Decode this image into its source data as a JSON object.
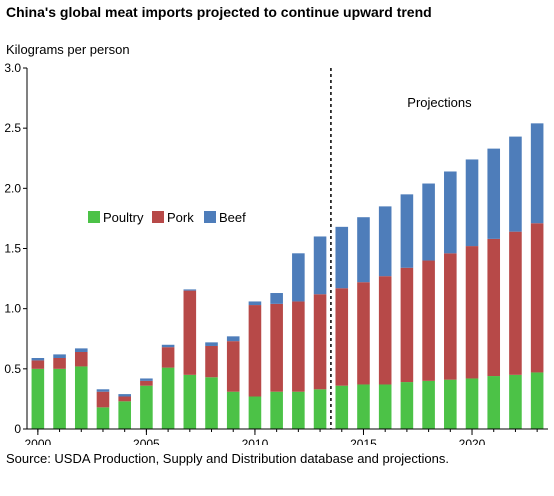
{
  "chart_data": {
    "type": "bar",
    "stacked": true,
    "title": "China's global meat imports projected to continue upward trend",
    "ylabel": "Kilograms per person",
    "xlabel": "",
    "ylim": [
      0,
      3.0
    ],
    "xlim": [
      2000,
      2023
    ],
    "x": [
      2000,
      2001,
      2002,
      2003,
      2004,
      2005,
      2006,
      2007,
      2008,
      2009,
      2010,
      2011,
      2012,
      2013,
      2014,
      2015,
      2016,
      2017,
      2018,
      2019,
      2020,
      2021,
      2022,
      2023
    ],
    "x_ticks": [
      2000,
      2005,
      2010,
      2015,
      2020
    ],
    "x_tick_labels": [
      "2000",
      "2005",
      "2010",
      "2015",
      "2020"
    ],
    "y_ticks": [
      0,
      0.5,
      1.0,
      1.5,
      2.0,
      2.5,
      3.0
    ],
    "y_tick_labels": [
      "0",
      "0.5",
      "1.0",
      "1.5",
      "2.0",
      "2.5",
      "3.0"
    ],
    "grid": false,
    "legend_position": "center-left",
    "series": [
      {
        "name": "Poultry",
        "color": "#4cc247",
        "values": [
          0.5,
          0.5,
          0.52,
          0.18,
          0.23,
          0.36,
          0.51,
          0.45,
          0.43,
          0.31,
          0.27,
          0.31,
          0.31,
          0.33,
          0.36,
          0.37,
          0.37,
          0.39,
          0.4,
          0.41,
          0.42,
          0.44,
          0.45,
          0.47
        ]
      },
      {
        "name": "Pork",
        "color": "#b74948",
        "values": [
          0.07,
          0.09,
          0.12,
          0.13,
          0.04,
          0.04,
          0.17,
          0.7,
          0.26,
          0.42,
          0.76,
          0.73,
          0.75,
          0.79,
          0.81,
          0.85,
          0.9,
          0.95,
          1.0,
          1.05,
          1.1,
          1.14,
          1.19,
          1.24
        ]
      },
      {
        "name": "Beef",
        "color": "#4e7dba",
        "values": [
          0.02,
          0.03,
          0.03,
          0.02,
          0.02,
          0.02,
          0.02,
          0.01,
          0.03,
          0.04,
          0.03,
          0.09,
          0.4,
          0.48,
          0.51,
          0.54,
          0.58,
          0.61,
          0.64,
          0.68,
          0.72,
          0.75,
          0.79,
          0.83
        ]
      }
    ],
    "annotations": [
      {
        "text": "Projections",
        "divider_between": [
          2013,
          2014
        ]
      }
    ]
  },
  "source_note": "Source: USDA Production, Supply and Distribution database and projections."
}
